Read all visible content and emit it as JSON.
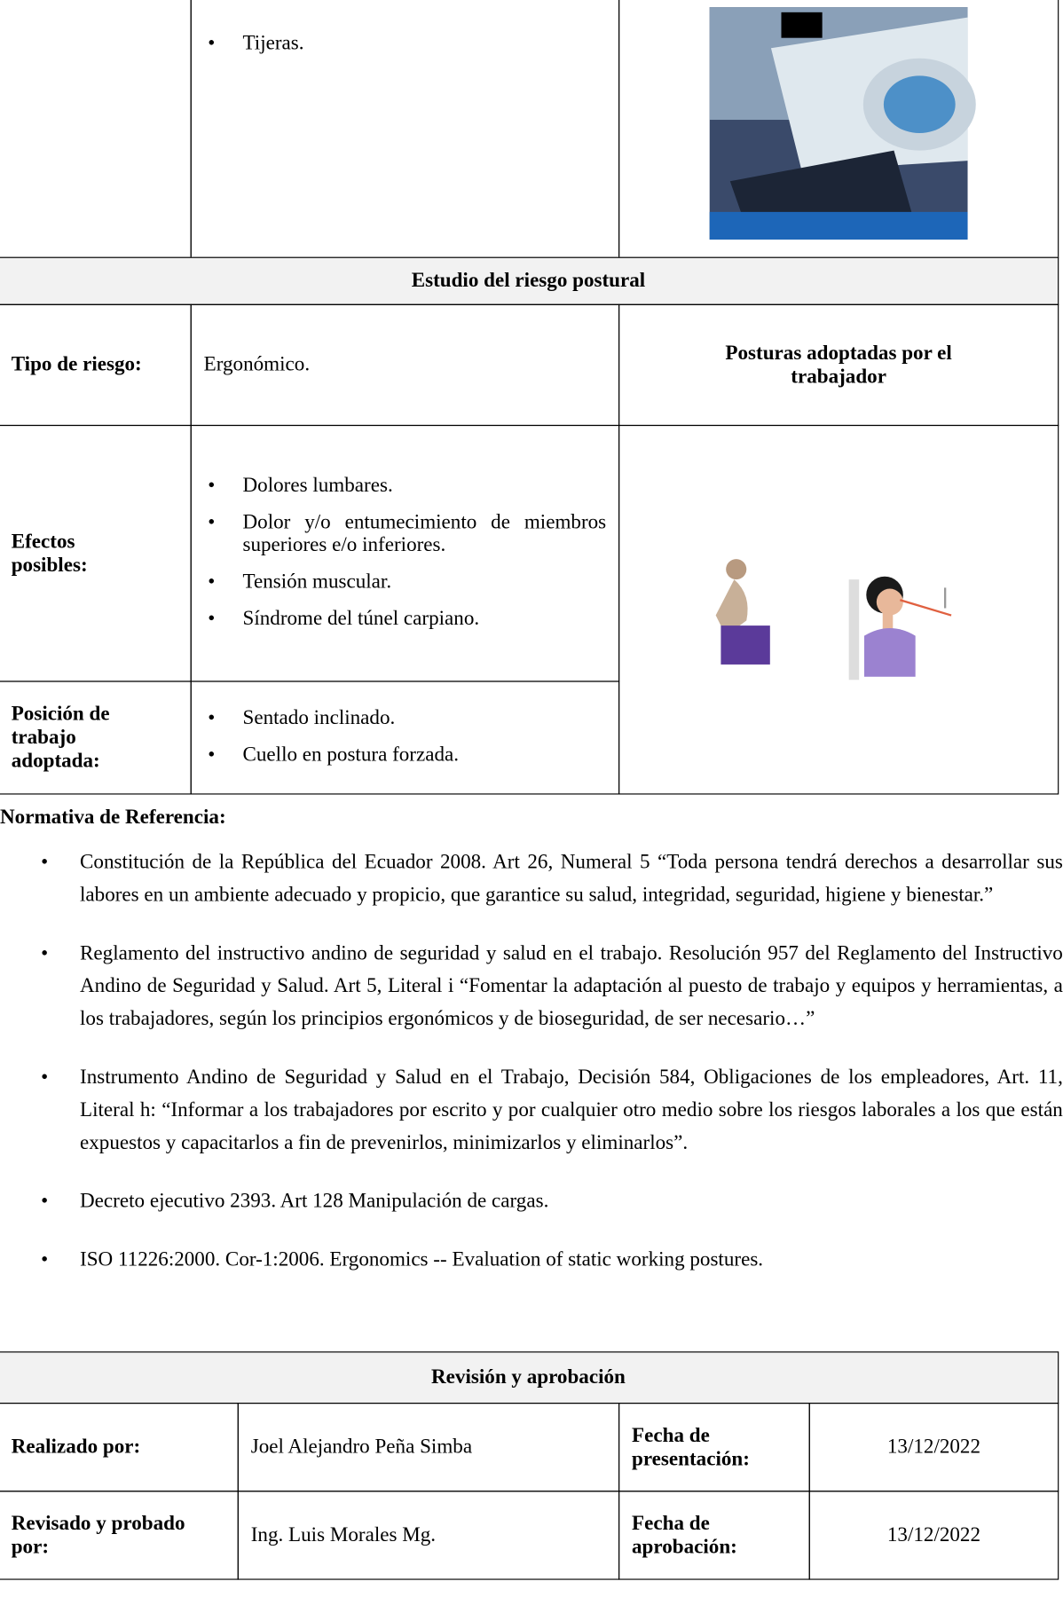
{
  "equipment": {
    "items": [
      "Tijeras."
    ]
  },
  "risk_study": {
    "title": "Estudio del riesgo postural",
    "risk_type_label": "Tipo de riesgo:",
    "risk_type": "Ergonómico.",
    "postures_label": "Posturas adoptadas por el trabajador",
    "effects_label": "Efectos posibles:",
    "effects": [
      "Dolores lumbares.",
      "Dolor y/o entumecimiento de miembros superiores e/o inferiores.",
      "Tensión muscular.",
      "Síndrome del túnel carpiano."
    ],
    "position_label": "Posición de trabajo adoptada:",
    "positions": [
      "Sentado inclinado.",
      "Cuello en postura forzada."
    ]
  },
  "regulations": {
    "title": "Normativa de Referencia:",
    "items": [
      "Constitución de la República del Ecuador 2008. Art 26, Numeral 5 “Toda persona tendrá derechos a desarrollar sus labores en un ambiente adecuado y propicio, que garantice su salud, integridad, seguridad, higiene y bienestar.”",
      "Reglamento del instructivo andino de seguridad y salud en el trabajo. Resolución 957 del Reglamento del Instructivo Andino de Seguridad y Salud. Art 5, Literal i “Fomentar la adaptación al puesto de trabajo y equipos y herramientas, a los trabajadores, según los principios ergonómicos y de bioseguridad, de ser necesario…”",
      "Instrumento Andino de Seguridad y Salud en el Trabajo, Decisión 584, Obligaciones de los empleadores, Art. 11, Literal h: “Informar a los trabajadores por escrito y por cualquier otro medio sobre los riesgos laborales a los que están expuestos y capacitarlos a fin de prevenirlos, minimizarlos y eliminarlos”.",
      "Decreto ejecutivo 2393. Art 128 Manipulación de cargas.",
      "ISO 11226:2000. Cor-1:2006. Ergonomics -- Evaluation of static working postures."
    ]
  },
  "approval": {
    "title": "Revisión y aprobación",
    "rows": [
      [
        "Realizado por:",
        "Joel Alejandro Peña Simba",
        "Fecha de presentación:",
        "13/12/2022"
      ],
      [
        "Revisado y probado por:",
        "Ing. Luis Morales Mg.",
        "Fecha de aprobación:",
        "13/12/2022"
      ]
    ]
  }
}
